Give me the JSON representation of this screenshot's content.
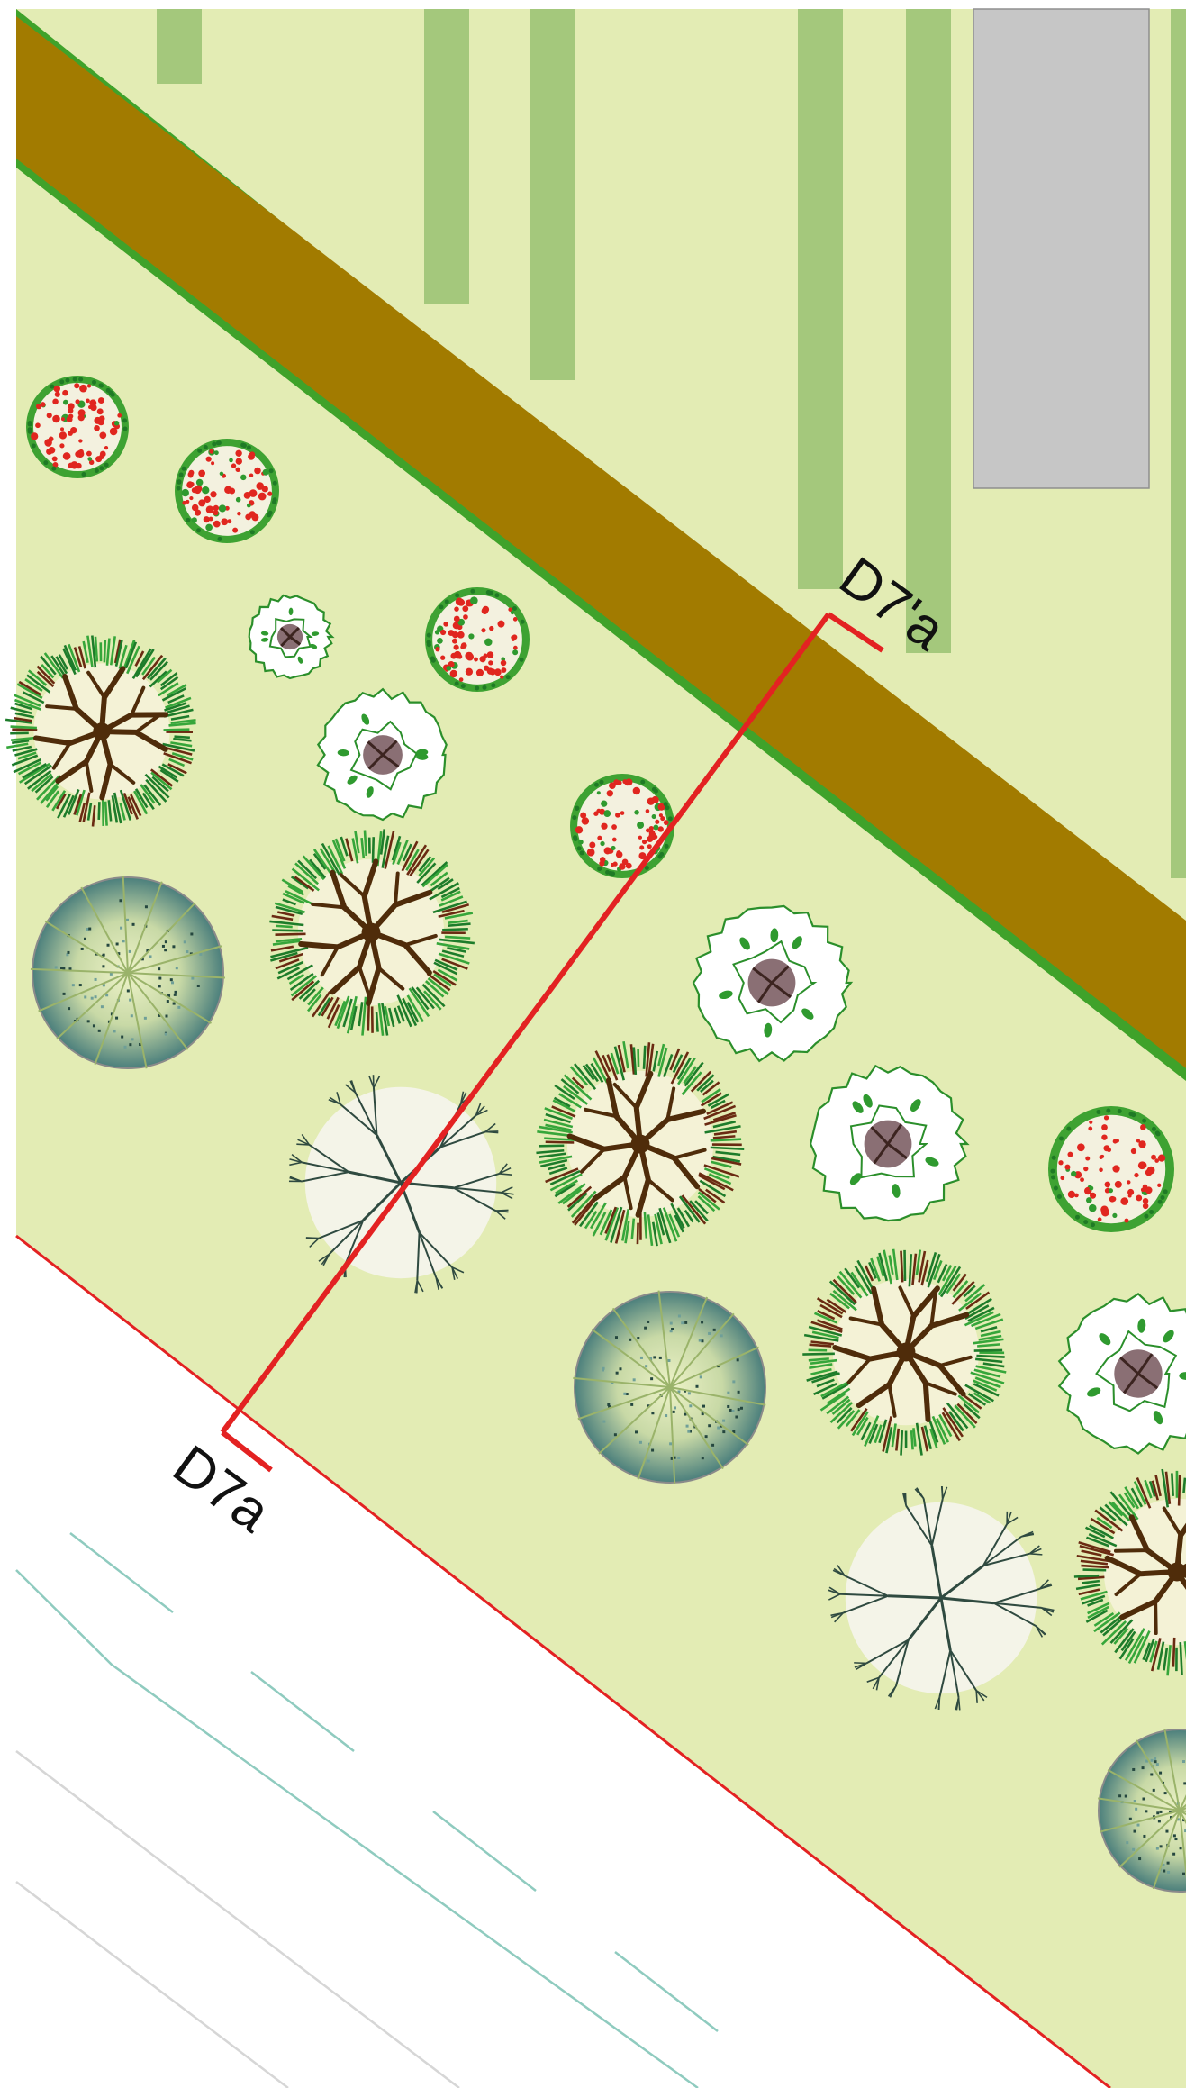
{
  "colors": {
    "lawn": "#e3ecb4",
    "walk_strip": "#a4c87c",
    "building": "#c6c6c6",
    "road": "#a27b00",
    "road_edge": "#3fa22a",
    "section_line": "#e32222",
    "sidewalk": "#ffffff",
    "paving_line_teal": "#8fcbbf",
    "paving_line_gray": "#d6d6d6",
    "label_text": "#111111"
  },
  "section_markers": {
    "start_label": "D7a",
    "end_label": "D7'a"
  },
  "plant_legend": {
    "flowering_shrub": "flowering-shrub-icon",
    "ornamental_shrub": "ornamental-shrub-icon",
    "deciduous_tree": "deciduous-tree-icon",
    "evergreen_tree": "evergreen-tree-icon",
    "bare_tree": "bare-branch-tree-icon"
  }
}
